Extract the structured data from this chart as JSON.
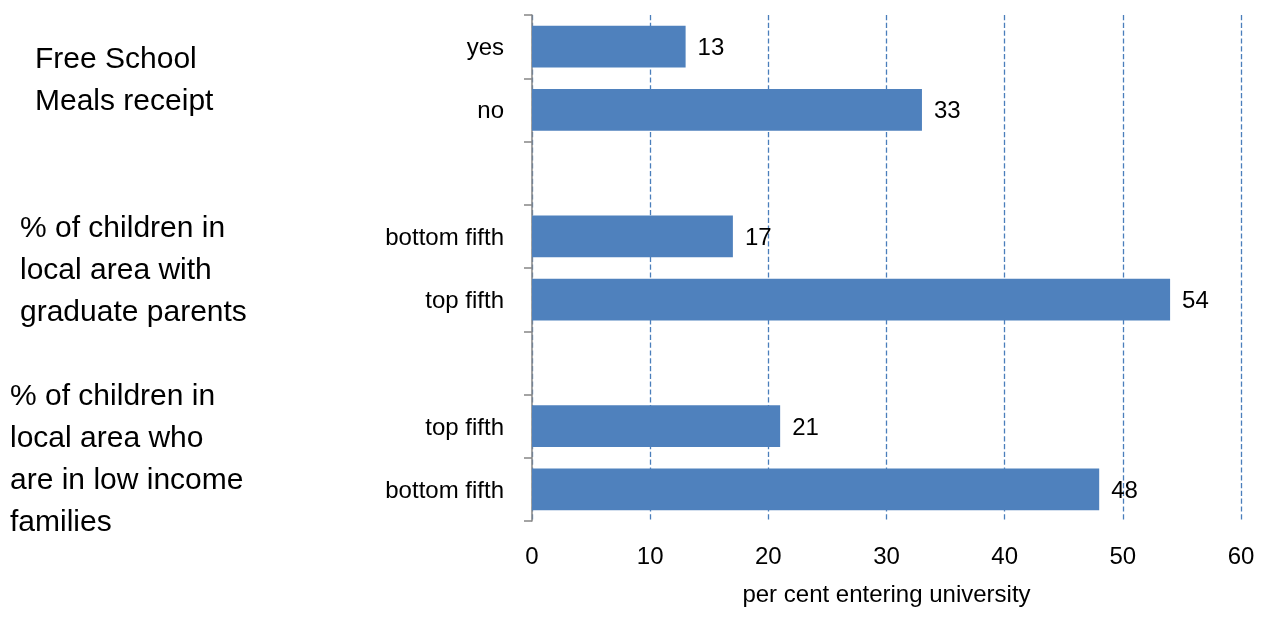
{
  "chart_data": {
    "type": "bar",
    "orientation": "horizontal",
    "xlabel": "per cent entering university",
    "categories": [
      "yes",
      "no",
      null,
      "bottom fifth",
      "top fifth",
      null,
      "top fifth",
      "bottom fifth"
    ],
    "values": [
      13,
      33,
      null,
      17,
      54,
      null,
      21,
      48
    ],
    "color": "#4f81bd",
    "xlim": [
      0,
      60
    ],
    "xticks": [
      0,
      10,
      20,
      30,
      40,
      50,
      60
    ],
    "grid": "x",
    "data_labels": true,
    "annotations": [
      "Free School\nMeals receipt",
      "% of children in\nlocal area with\ngraduate parents",
      "% of children in\nlocal area who\nare in low income\nfamilies"
    ]
  }
}
